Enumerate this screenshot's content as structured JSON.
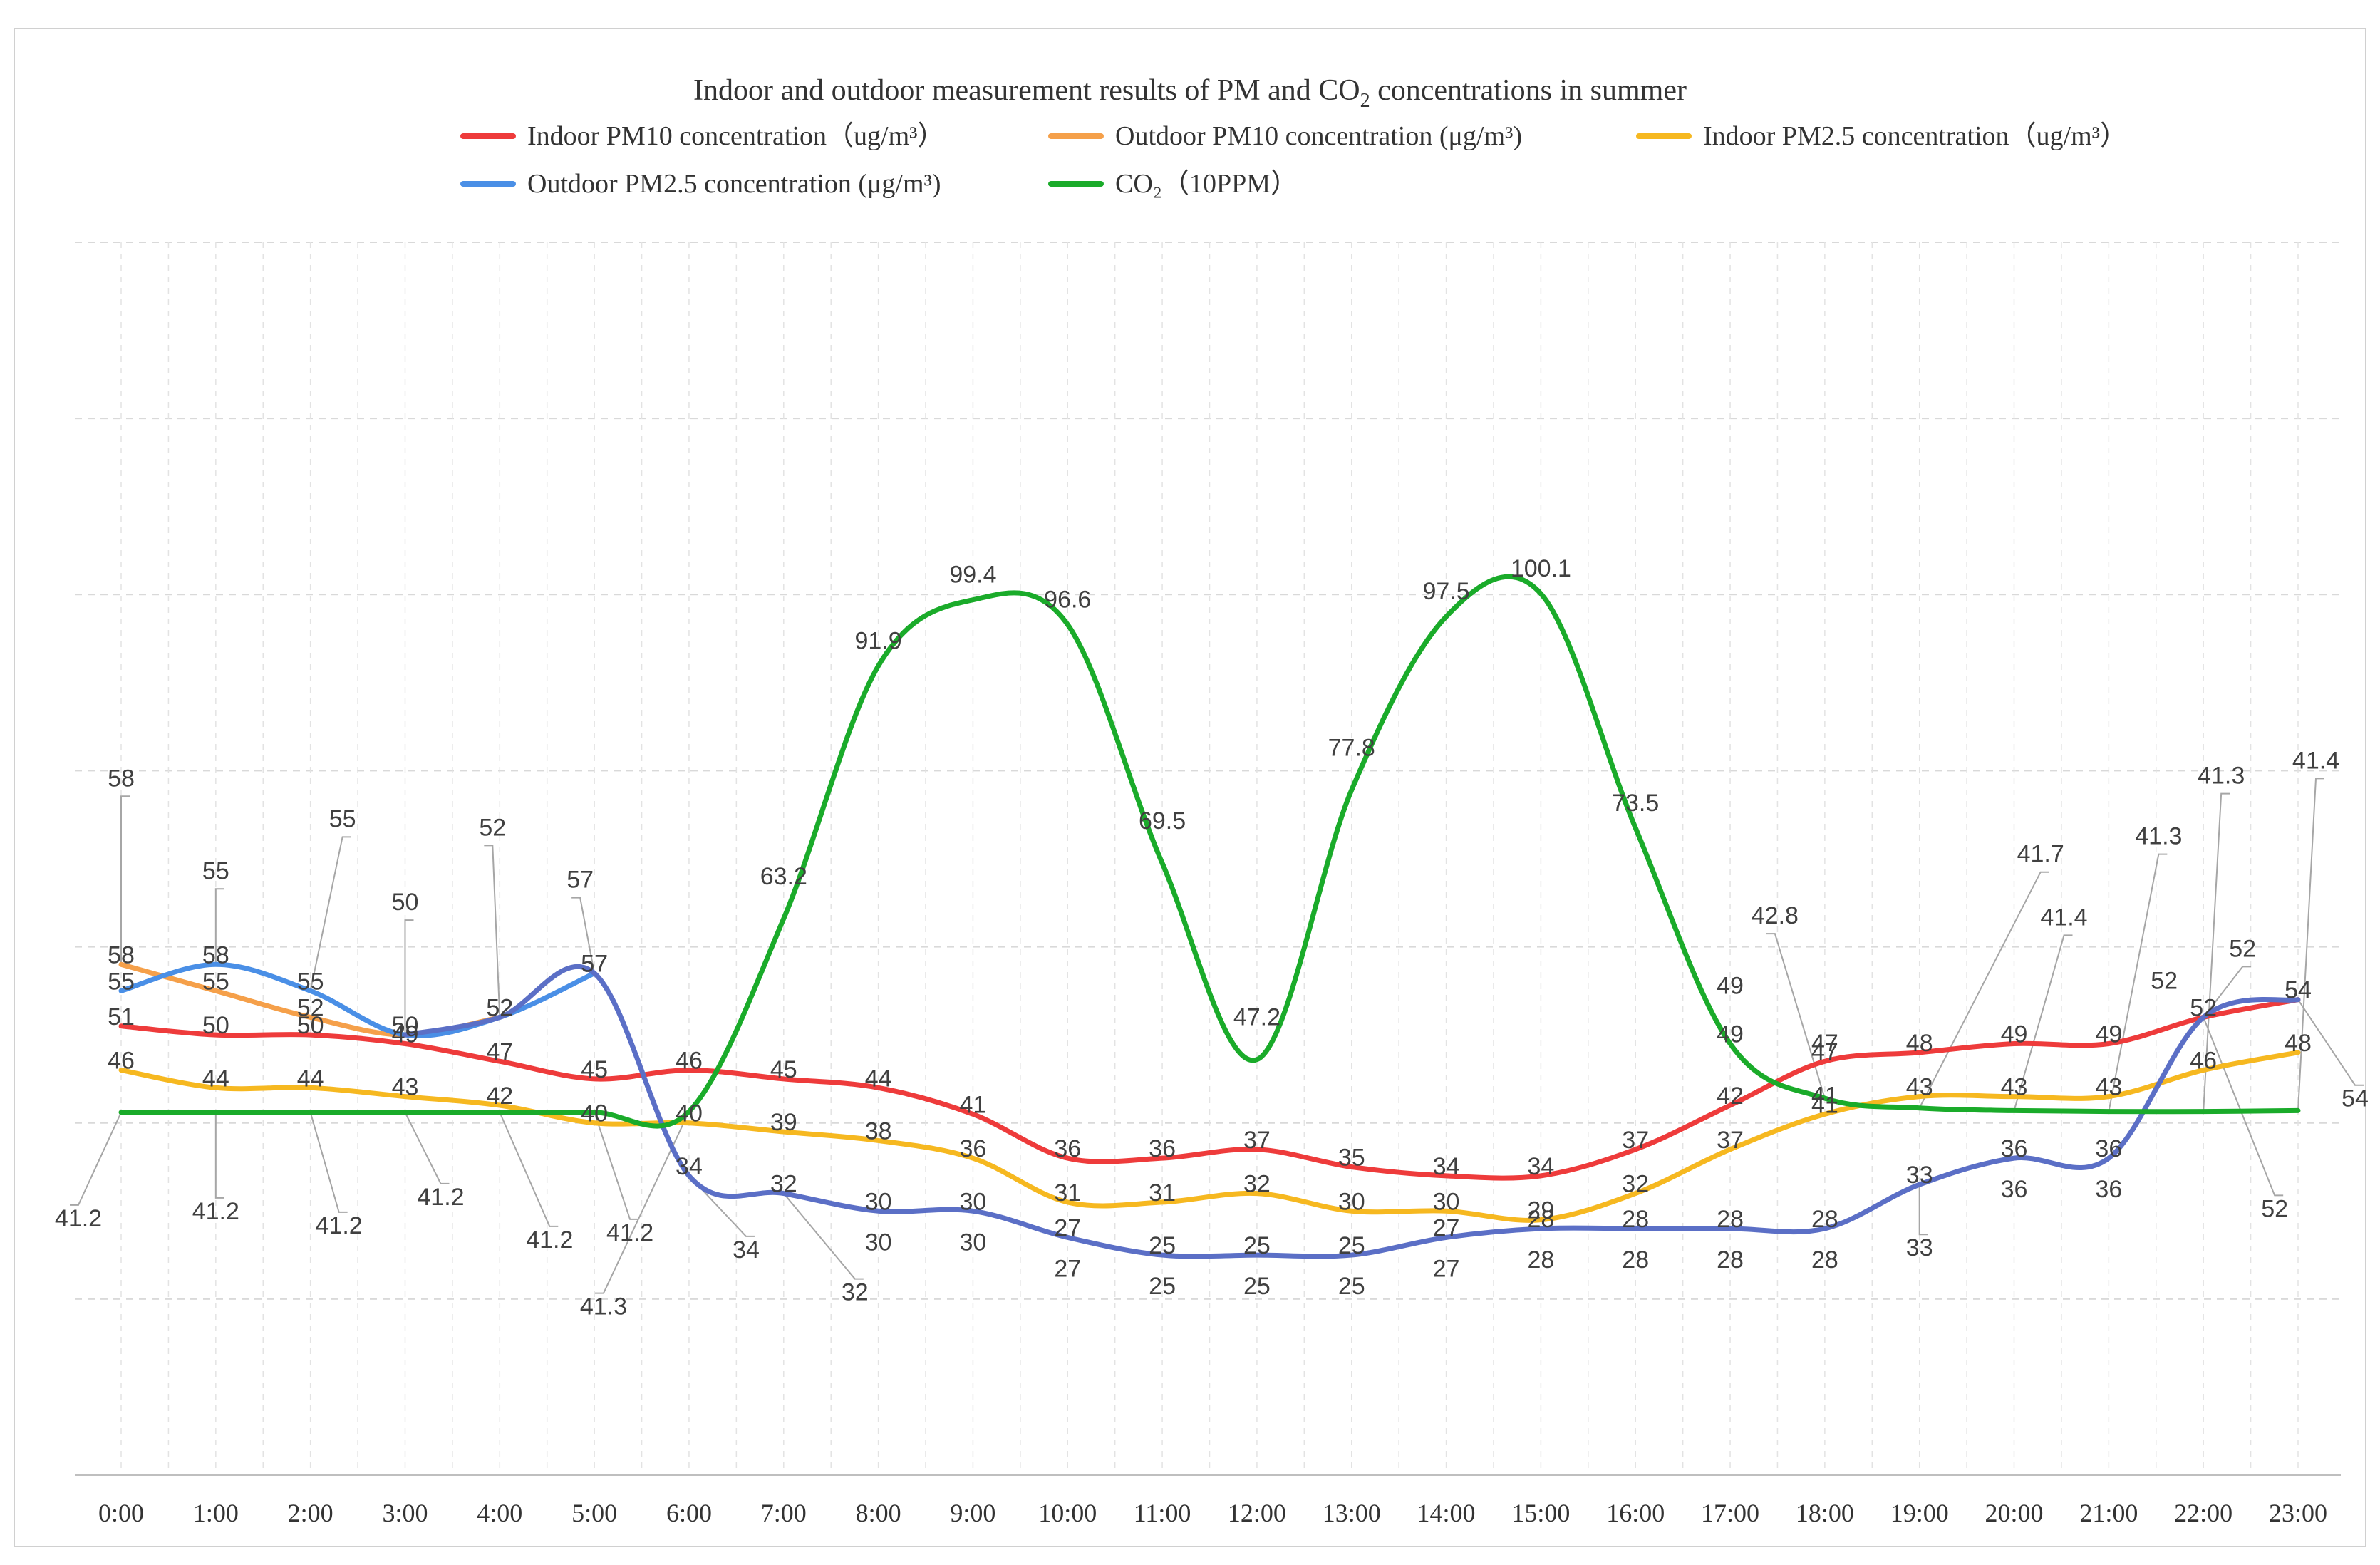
{
  "chart_data": {
    "type": "line",
    "title_main": "Indoor and outdoor measurement results of PM and CO",
    "title_sub": "2",
    "title_tail": " concentrations in summer",
    "categories": [
      "0:00",
      "1:00",
      "2:00",
      "3:00",
      "4:00",
      "5:00",
      "6:00",
      "7:00",
      "8:00",
      "9:00",
      "10:00",
      "11:00",
      "12:00",
      "13:00",
      "14:00",
      "15:00",
      "16:00",
      "17:00",
      "18:00",
      "19:00",
      "20:00",
      "21:00",
      "22:00",
      "23:00"
    ],
    "ylim": [
      0,
      140
    ],
    "grid": true,
    "legend_position": "top",
    "series": [
      {
        "key": "indoor_pm10",
        "name": "Indoor PM10 concentration（ug/m³）",
        "color": "#ee3b3b",
        "values": [
          51,
          50,
          50,
          49,
          47,
          45,
          46,
          45,
          44,
          41,
          36,
          36,
          37,
          35,
          34,
          34,
          37,
          42,
          47,
          48,
          49,
          49,
          52,
          54
        ],
        "labels": [
          "51",
          "50",
          "50",
          "49",
          "47",
          "45",
          "46",
          "45",
          "44",
          "41",
          "36",
          "36",
          "37",
          "35",
          "34",
          "34",
          "37",
          "42",
          "47",
          "48",
          "49",
          "49",
          "",
          "54"
        ]
      },
      {
        "key": "outdoor_pm10",
        "name": "Outdoor PM10 concentration (μg/m³)",
        "color": "#f5a04a",
        "values": [
          58,
          55,
          52,
          50,
          52,
          null,
          null,
          null,
          null,
          null,
          null,
          null,
          null,
          null,
          null,
          null,
          null,
          null,
          null,
          null,
          null,
          null,
          null,
          null
        ],
        "labels": [
          "58",
          "55",
          "52",
          "",
          "",
          "",
          "",
          "",
          "",
          "",
          "",
          "",
          "",
          "",
          "",
          "",
          "",
          "",
          "",
          "",
          "",
          "",
          "",
          ""
        ]
      },
      {
        "key": "indoor_pm25",
        "name": "Indoor PM2.5 concentration（ug/m³）",
        "color": "#f6b820",
        "values": [
          46,
          44,
          44,
          43,
          42,
          40,
          40,
          39,
          38,
          36,
          31,
          31,
          32,
          30,
          30,
          29,
          32,
          37,
          41,
          43,
          43,
          43,
          46,
          48
        ],
        "labels": [
          "46",
          "44",
          "44",
          "43",
          "42",
          "40",
          "40",
          "39",
          "38",
          "36",
          "31",
          "31",
          "32",
          "30",
          "30",
          "29",
          "32",
          "37",
          "41",
          "43",
          "43",
          "43",
          "46",
          "48"
        ]
      },
      {
        "key": "outdoor_pm25",
        "name": "Outdoor PM2.5 concentration (μg/m³)",
        "color": "#4a8fe6",
        "values": [
          55,
          58,
          55,
          50,
          52,
          57,
          null,
          null,
          null,
          null,
          null,
          null,
          null,
          null,
          null,
          null,
          null,
          null,
          null,
          null,
          null,
          null,
          null,
          null
        ],
        "labels": [
          "55",
          "58",
          "55",
          "50",
          "52",
          "57",
          "",
          "",
          "",
          "",
          "",
          "",
          "",
          "",
          "",
          "",
          "",
          "",
          "",
          "",
          "",
          "",
          "",
          ""
        ]
      },
      {
        "key": "pm25_blend",
        "name": "",
        "color": "#5b6fc6",
        "values": [
          null,
          null,
          null,
          50,
          52,
          57,
          34,
          32,
          30,
          30,
          27,
          25,
          25,
          25,
          27,
          28,
          28,
          28,
          28,
          33,
          36,
          36,
          52,
          54
        ],
        "labels": [
          "",
          "",
          "",
          "",
          "52",
          "57",
          "34",
          "32",
          "30",
          "30",
          "27",
          "25",
          "25",
          "25",
          "27",
          "28",
          "28",
          "28",
          "28",
          "33",
          "36",
          "36",
          "52",
          "54"
        ]
      },
      {
        "key": "co2",
        "name": "CO₂（10PPM）",
        "color": "#1aab2a",
        "values": [
          41.2,
          41.2,
          41.2,
          41.2,
          41.2,
          41.2,
          41.3,
          63.2,
          91.9,
          99.4,
          96.6,
          69.5,
          47.2,
          77.8,
          97.5,
          100.1,
          73.5,
          49,
          42.8,
          41.7,
          41.4,
          41.3,
          41.3,
          41.4
        ],
        "labels": [
          "41.2",
          "41.2",
          "41.2",
          "41.2",
          "41.2",
          "41.2",
          "41.3",
          "63.2",
          "91.9",
          "99.4",
          "96.6",
          "69.5",
          "47.2",
          "77.8",
          "97.5",
          "100.1",
          "73.5",
          "49",
          "42.8",
          "41.7",
          "41.4",
          "41.3",
          "41.3",
          "41.4"
        ]
      }
    ],
    "extra_labels": [
      {
        "text": "58",
        "series": "outdoor_pm10"
      },
      {
        "text": "55",
        "series": "outdoor_pm25"
      },
      {
        "text": "55",
        "series": "outdoor_pm25"
      },
      {
        "text": "50",
        "series": "outdoor_pm25"
      },
      {
        "text": "52",
        "series": "outdoor_pm25"
      },
      {
        "text": "57",
        "series": "outdoor_pm25"
      },
      {
        "text": "41.2",
        "series": "co2"
      },
      {
        "text": "41.2",
        "series": "co2"
      },
      {
        "text": "41.2",
        "series": "co2"
      },
      {
        "text": "41.2",
        "series": "co2"
      },
      {
        "text": "41.2",
        "series": "co2"
      },
      {
        "text": "41.2",
        "series": "co2"
      },
      {
        "text": "41.3",
        "series": "co2"
      },
      {
        "text": "34",
        "series": "pm25_blend"
      },
      {
        "text": "32",
        "series": "pm25_blend"
      },
      {
        "text": "30",
        "series": "pm25_blend"
      },
      {
        "text": "30",
        "series": "pm25_blend"
      },
      {
        "text": "27",
        "series": "pm25_blend"
      },
      {
        "text": "25",
        "series": "pm25_blend"
      },
      {
        "text": "25",
        "series": "pm25_blend"
      },
      {
        "text": "25",
        "series": "pm25_blend"
      },
      {
        "text": "27",
        "series": "pm25_blend"
      },
      {
        "text": "28",
        "series": "pm25_blend"
      },
      {
        "text": "28",
        "series": "pm25_blend"
      },
      {
        "text": "28",
        "series": "pm25_blend"
      },
      {
        "text": "28",
        "series": "pm25_blend"
      },
      {
        "text": "33",
        "series": "pm25_blend"
      },
      {
        "text": "36",
        "series": "pm25_blend"
      },
      {
        "text": "36",
        "series": "pm25_blend"
      },
      {
        "text": "41.7",
        "series": "co2"
      },
      {
        "text": "41.4",
        "series": "co2"
      },
      {
        "text": "41.3",
        "series": "co2"
      },
      {
        "text": "41.3",
        "series": "co2"
      },
      {
        "text": "41.4",
        "series": "co2"
      },
      {
        "text": "52",
        "series": "pm25_blend"
      },
      {
        "text": "52",
        "series": "pm25_blend"
      },
      {
        "text": "52",
        "series": "pm25_blend"
      },
      {
        "text": "54",
        "series": "pm25_blend"
      },
      {
        "text": "42.8",
        "series": "co2"
      },
      {
        "text": "49",
        "series": "co2"
      },
      {
        "text": "41",
        "series": "indoor_pm25"
      },
      {
        "text": "47",
        "series": "indoor_pm10"
      }
    ]
  }
}
